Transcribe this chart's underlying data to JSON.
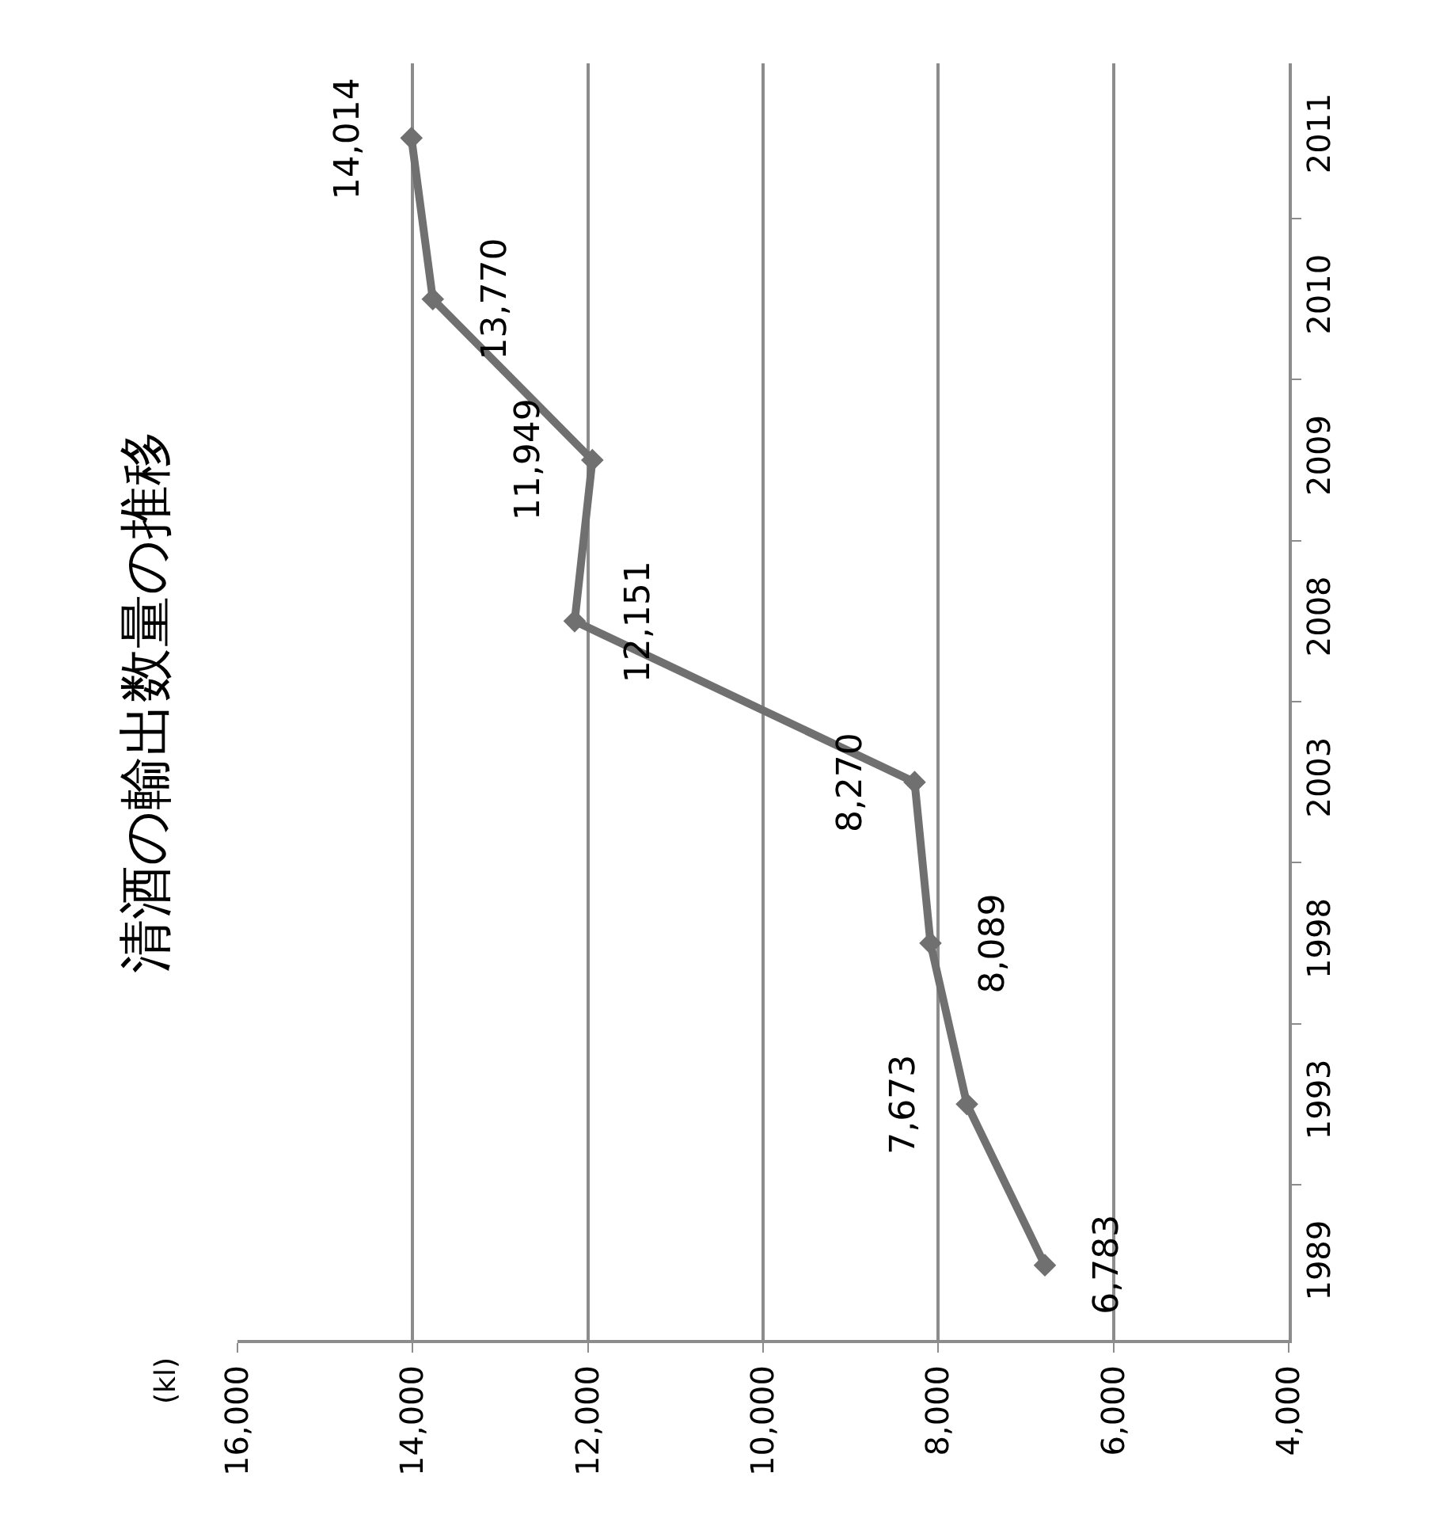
{
  "chart_data": {
    "type": "line",
    "orientation": "horizontal",
    "title": "清酒の輸出数量の推移",
    "annotations": [
      "(kl)"
    ],
    "categories": [
      "2011",
      "2010",
      "2009",
      "2008",
      "2003",
      "1998",
      "1993",
      "1989"
    ],
    "series": [
      {
        "color": "#707070",
        "values": [
          14014,
          13770,
          11949,
          12151,
          8270,
          8089,
          7673,
          6783
        ],
        "value_labels": [
          "14,014",
          "13,770",
          "11,949",
          "12,151",
          "8,270",
          "8,089",
          "7,673",
          "6,783"
        ]
      }
    ],
    "xlim": [
      16000,
      4000
    ],
    "xticks": [
      {
        "value": 16000,
        "label": "16,000"
      },
      {
        "value": 14000,
        "label": "14,000"
      },
      {
        "value": 12000,
        "label": "12,000"
      },
      {
        "value": 10000,
        "label": "10,000"
      },
      {
        "value": 8000,
        "label": "8,000"
      },
      {
        "value": 6000,
        "label": "6,000"
      },
      {
        "value": 4000,
        "label": "4,000"
      }
    ],
    "grid": "x",
    "marker": "diamond",
    "line_style": "solid",
    "legend": false
  }
}
